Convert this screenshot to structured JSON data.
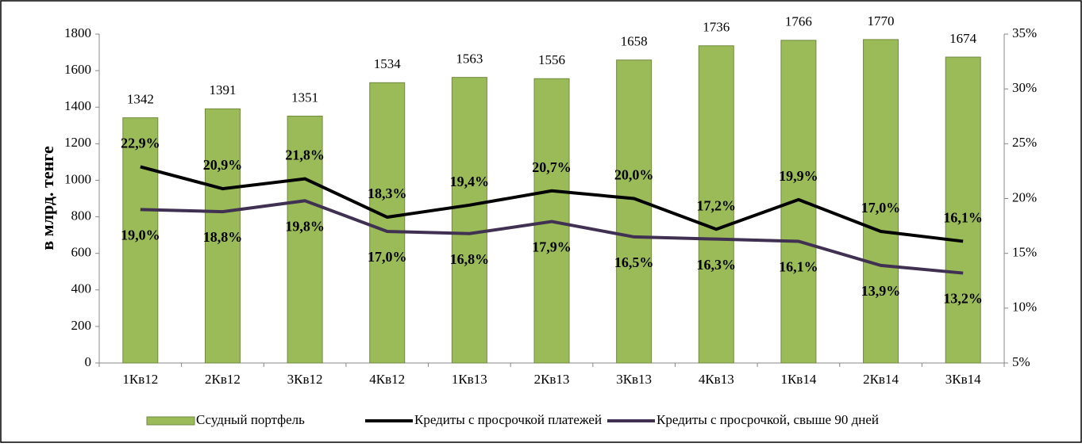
{
  "chart_data": {
    "type": "bar",
    "y_axis_label": "в млрд. тенге",
    "categories": [
      "1Кв12",
      "2Кв12",
      "3Кв12",
      "4Кв12",
      "1Кв13",
      "2Кв13",
      "3Кв13",
      "4Кв13",
      "1Кв14",
      "2Кв14",
      "3Кв14"
    ],
    "series": [
      {
        "name": "Ссудный портфель",
        "type": "bar",
        "color": "#9bbb59",
        "values": [
          1342,
          1391,
          1351,
          1534,
          1563,
          1556,
          1658,
          1736,
          1766,
          1770,
          1674
        ]
      },
      {
        "name": "Кредиты с просрочкой платежей",
        "type": "line",
        "axis": "y2",
        "color": "#000000",
        "values": [
          22.9,
          20.9,
          21.8,
          18.3,
          19.4,
          20.7,
          20.0,
          17.2,
          19.9,
          17.0,
          16.1
        ],
        "value_labels": [
          "22,9%",
          "20,9%",
          "21,8%",
          "18,3%",
          "19,4%",
          "20,7%",
          "20,0%",
          "17,2%",
          "19,9%",
          "17,0%",
          "16,1%"
        ]
      },
      {
        "name": "Кредиты с просрочкой, свыше 90 дней",
        "type": "line",
        "axis": "y2",
        "color": "#403152",
        "values": [
          19.0,
          18.8,
          19.8,
          17.0,
          16.8,
          17.9,
          16.5,
          16.3,
          16.1,
          13.9,
          13.2
        ],
        "value_labels": [
          "19,0%",
          "18,8%",
          "19,8%",
          "17,0%",
          "16,8%",
          "17,9%",
          "16,5%",
          "16,3%",
          "16,1%",
          "13,9%",
          "13,2%"
        ]
      }
    ],
    "ylim": [
      0,
      1800
    ],
    "yticks": [
      0,
      200,
      400,
      600,
      800,
      1000,
      1200,
      1400,
      1600,
      1800
    ],
    "y2lim": [
      5,
      35
    ],
    "y2ticks": [
      {
        "value": 5,
        "label": "5%"
      },
      {
        "value": 10,
        "label": "10%"
      },
      {
        "value": 15,
        "label": "15%"
      },
      {
        "value": 20,
        "label": "20%"
      },
      {
        "value": 25,
        "label": "25%"
      },
      {
        "value": 30,
        "label": "30%"
      },
      {
        "value": 35,
        "label": "35%"
      }
    ],
    "legend": "bottom"
  }
}
